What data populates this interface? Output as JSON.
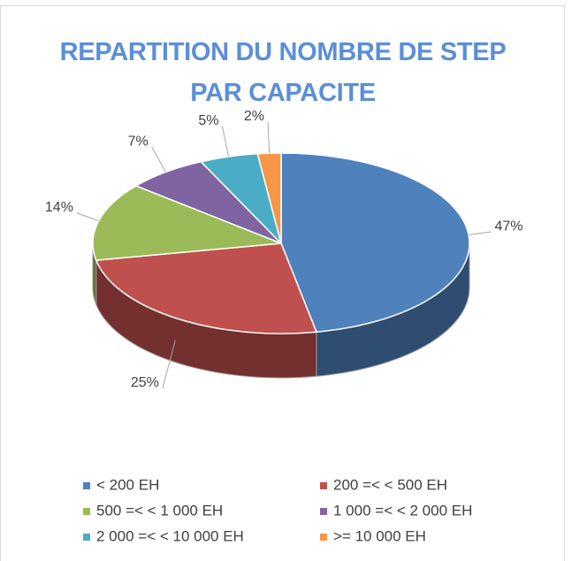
{
  "chart_data": {
    "type": "pie3d",
    "title": "REPARTITION DU NOMBRE DE STEP PAR CAPACITE",
    "categories": [
      "< 200 EH",
      "200 =< < 500 EH",
      "500 =< < 1 000 EH",
      "1 000 =< < 2 000 EH",
      "2 000 =< < 10 000 EH",
      ">= 10 000 EH"
    ],
    "values": [
      47,
      25,
      14,
      7,
      5,
      2
    ],
    "value_labels": [
      "47%",
      "25%",
      "14%",
      "7%",
      "5%",
      "2%"
    ],
    "colors": [
      "#4f81bd",
      "#c0504d",
      "#9bbb59",
      "#8064a2",
      "#4bacc6",
      "#f79646"
    ],
    "legend": "bottom"
  }
}
